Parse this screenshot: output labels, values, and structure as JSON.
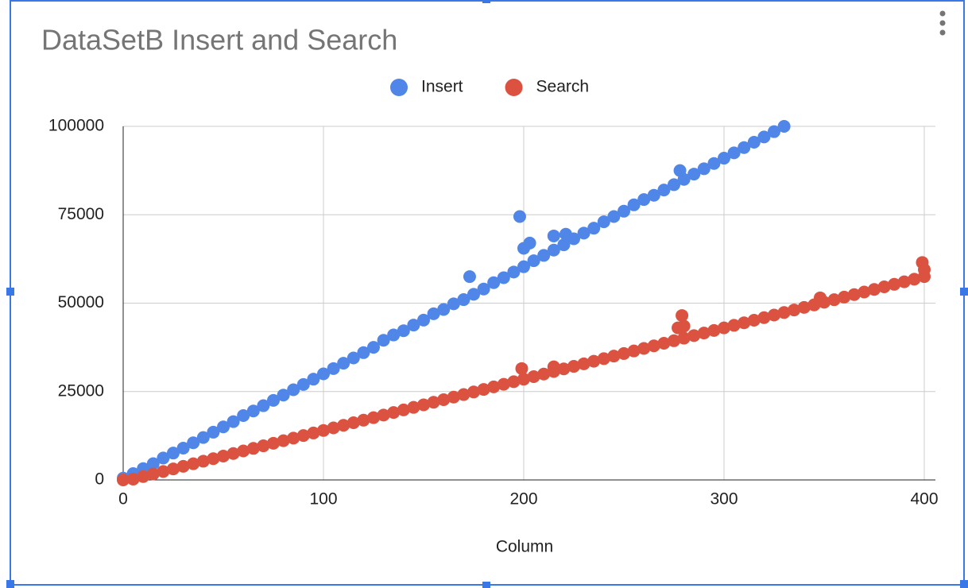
{
  "chart_data": {
    "type": "scatter",
    "title": "DataSetB Insert and Search",
    "x_label": "Column",
    "xlim": [
      0,
      400
    ],
    "xticks": [
      0,
      100,
      200,
      300,
      400
    ],
    "ylim": [
      0,
      100000
    ],
    "yticks": [
      0,
      25000,
      50000,
      75000,
      100000
    ],
    "grid": true,
    "legend": "top",
    "series": [
      {
        "name": "Insert",
        "color": "#4f86e8",
        "x": [
          0,
          5,
          10,
          15,
          20,
          25,
          30,
          35,
          40,
          45,
          50,
          55,
          60,
          65,
          70,
          75,
          80,
          85,
          90,
          95,
          100,
          105,
          110,
          115,
          120,
          125,
          130,
          135,
          140,
          145,
          150,
          155,
          160,
          165,
          170,
          175,
          180,
          185,
          190,
          195,
          200,
          205,
          210,
          215,
          220,
          225,
          230,
          235,
          240,
          245,
          250,
          255,
          260,
          265,
          270,
          275,
          280,
          285,
          290,
          295,
          300,
          305,
          310,
          315,
          320,
          325,
          330,
          173,
          198,
          200,
          203,
          215,
          221,
          278
        ],
        "values": [
          500,
          1800,
          3200,
          4600,
          6200,
          7600,
          9000,
          10500,
          12000,
          13500,
          15000,
          16500,
          18200,
          19500,
          21000,
          22500,
          24000,
          25500,
          27000,
          28500,
          30000,
          31500,
          33000,
          34500,
          36000,
          37500,
          39500,
          41000,
          42200,
          43800,
          45200,
          47000,
          48200,
          49800,
          51000,
          52500,
          54000,
          55800,
          57200,
          58800,
          60300,
          62000,
          63500,
          65000,
          66500,
          68200,
          69800,
          71200,
          73000,
          74500,
          76000,
          77800,
          79300,
          80500,
          82000,
          83500,
          85000,
          86500,
          88000,
          89500,
          91000,
          92500,
          94000,
          95500,
          97000,
          98500,
          100000,
          57500,
          74500,
          65500,
          67000,
          69000,
          69500,
          87500
        ]
      },
      {
        "name": "Search",
        "color": "#dc5241",
        "x": [
          0,
          5,
          10,
          15,
          20,
          25,
          30,
          35,
          40,
          45,
          50,
          55,
          60,
          65,
          70,
          75,
          80,
          85,
          90,
          95,
          100,
          105,
          110,
          115,
          120,
          125,
          130,
          135,
          140,
          145,
          150,
          155,
          160,
          165,
          170,
          175,
          180,
          185,
          190,
          195,
          200,
          205,
          210,
          215,
          220,
          225,
          230,
          235,
          240,
          245,
          250,
          255,
          260,
          265,
          270,
          275,
          280,
          285,
          290,
          295,
          300,
          305,
          310,
          315,
          320,
          325,
          330,
          335,
          340,
          345,
          350,
          355,
          360,
          365,
          370,
          375,
          380,
          385,
          390,
          395,
          400,
          199,
          215,
          277,
          279,
          280,
          345,
          348,
          399,
          400
        ],
        "values": [
          0,
          225,
          950,
          1675,
          2400,
          3125,
          3850,
          4575,
          5300,
          6025,
          6750,
          7475,
          8200,
          8925,
          9650,
          10375,
          11100,
          11825,
          12550,
          13275,
          14000,
          14725,
          15450,
          16175,
          16900,
          17625,
          18350,
          19075,
          19800,
          20525,
          21250,
          21975,
          22700,
          23425,
          24150,
          24875,
          25600,
          26325,
          27050,
          27775,
          28500,
          29225,
          29950,
          30675,
          31400,
          32125,
          32850,
          33575,
          34300,
          35025,
          35750,
          36475,
          37200,
          37925,
          38650,
          39375,
          40100,
          40825,
          41550,
          42275,
          43000,
          43725,
          44450,
          45175,
          45900,
          46625,
          47350,
          48075,
          48800,
          49525,
          50250,
          50975,
          51700,
          52425,
          53150,
          53875,
          54600,
          55325,
          56050,
          56775,
          57500,
          31500,
          32000,
          43000,
          46500,
          43500,
          49500,
          51500,
          61500,
          59500
        ]
      }
    ]
  }
}
